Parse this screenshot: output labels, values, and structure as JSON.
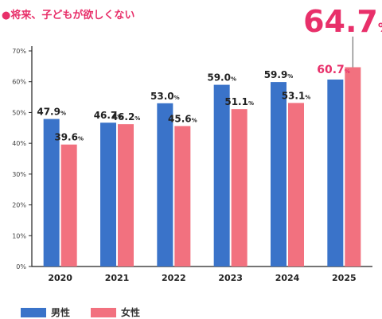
{
  "chart_data": {
    "type": "bar",
    "title": "●将来、子どもが欲しくない",
    "categories": [
      "2020",
      "2021",
      "2022",
      "2023",
      "2024",
      "2025"
    ],
    "series": [
      {
        "name": "男性",
        "values": [
          47.9,
          46.7,
          53.0,
          59.0,
          59.9,
          60.7
        ],
        "color": "#3a73c9"
      },
      {
        "name": "女性",
        "values": [
          39.6,
          46.2,
          45.6,
          51.1,
          53.1,
          64.7
        ],
        "color": "#f2717f"
      }
    ],
    "labels": [
      [
        "47.9%",
        "46.7%",
        "53.0%",
        "59.0%",
        "59.9%",
        "60.7%"
      ],
      [
        "39.6%",
        "46.2%",
        "45.6%",
        "51.1%",
        "53.1%",
        "64.7%"
      ]
    ],
    "ylim": [
      0,
      70
    ],
    "yticks": [
      "0%",
      "10%",
      "20%",
      "30%",
      "40%",
      "50%",
      "60%",
      "70%"
    ],
    "grid": false,
    "legend_position": "bottom-left",
    "highlight_color": "#e8306a"
  }
}
